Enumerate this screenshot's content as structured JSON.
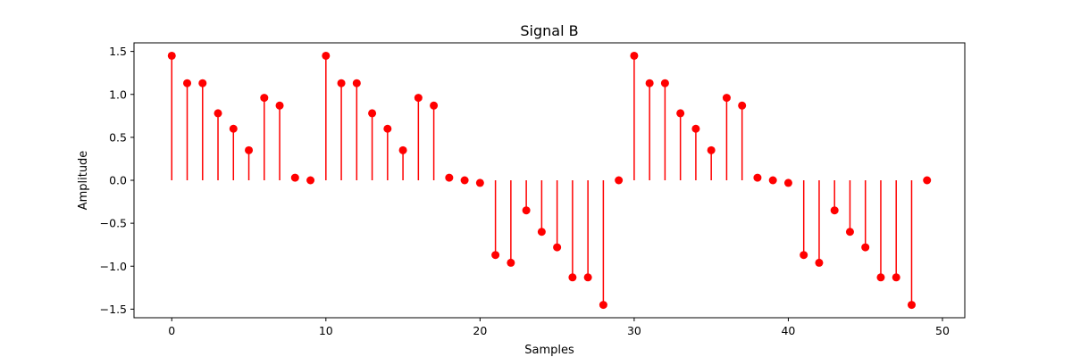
{
  "chart_data": {
    "type": "stem",
    "title": "Signal B",
    "xlabel": "Samples",
    "ylabel": "Amplitude",
    "xlim": [
      -2.45,
      51.45
    ],
    "ylim": [
      -1.6,
      1.6
    ],
    "xticks": [
      0,
      10,
      20,
      30,
      40,
      50
    ],
    "yticks": [
      -1.5,
      -1.0,
      -0.5,
      0.0,
      0.5,
      1.0,
      1.5
    ],
    "ytick_labels": [
      "−1.5",
      "−1.0",
      "−0.5",
      "0.0",
      "0.5",
      "1.0",
      "1.5"
    ],
    "grid": false,
    "color": "#ff0000",
    "x": [
      0,
      1,
      2,
      3,
      4,
      5,
      6,
      7,
      8,
      9,
      10,
      11,
      12,
      13,
      14,
      15,
      16,
      17,
      18,
      19,
      20,
      21,
      22,
      23,
      24,
      25,
      26,
      27,
      28,
      29,
      30,
      31,
      32,
      33,
      34,
      35,
      36,
      37,
      38,
      39,
      40,
      41,
      42,
      43,
      44,
      45,
      46,
      47,
      48,
      49
    ],
    "values": [
      1.45,
      1.13,
      1.13,
      0.78,
      0.6,
      0.35,
      0.96,
      0.87,
      0.03,
      0.0,
      1.45,
      1.13,
      1.13,
      0.78,
      0.6,
      0.35,
      0.96,
      0.87,
      0.03,
      0.0,
      -0.03,
      -0.87,
      -0.96,
      -0.35,
      -0.6,
      -0.78,
      -1.13,
      -1.13,
      -1.45,
      0.0,
      1.45,
      1.13,
      1.13,
      0.78,
      0.6,
      0.35,
      0.96,
      0.87,
      0.03,
      0.0,
      -0.03,
      -0.87,
      -0.96,
      -0.35,
      -0.6,
      -0.78,
      -1.13,
      -1.13,
      -1.45,
      0.0
    ]
  }
}
